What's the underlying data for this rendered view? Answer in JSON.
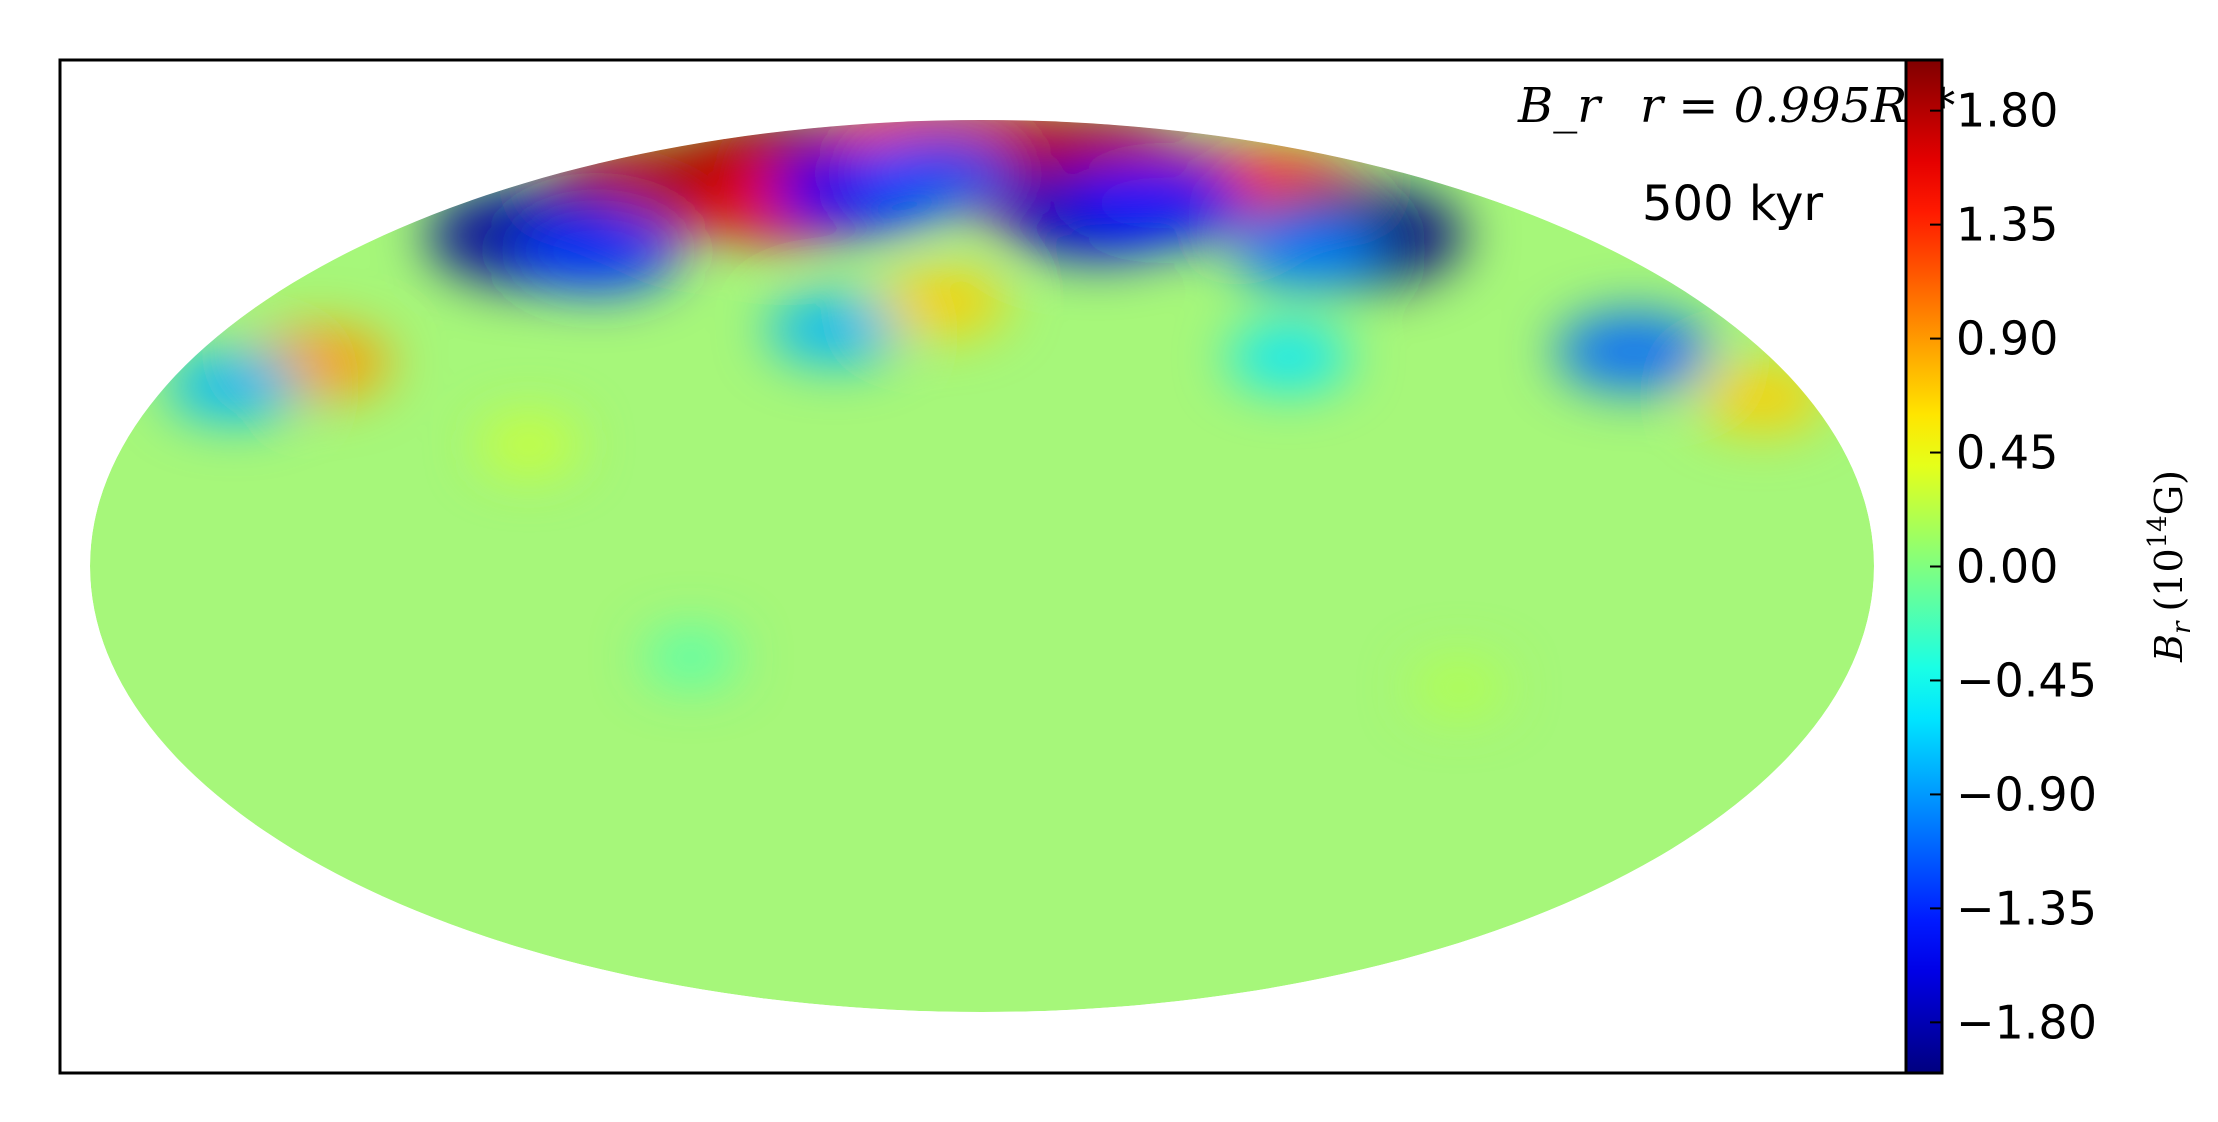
{
  "chart_data": {
    "type": "heatmap",
    "projection": "Mollweide (all-sky map)",
    "variable_label": "B_r",
    "radius_label": "r = 0.995R_*",
    "time_label": "500 kyr",
    "colorbar": {
      "label_main": "B",
      "label_sub": "r",
      "label_unit_open": "(10",
      "label_unit_exp": "14",
      "label_unit_close": "G)",
      "colormap": "jet",
      "range": [
        -2.0,
        2.0
      ],
      "ticks": [
        1.8,
        1.35,
        0.9,
        0.45,
        0.0,
        -0.45,
        -0.9,
        -1.35,
        -1.8
      ],
      "tick_labels": [
        "1.80",
        "1.35",
        "0.90",
        "0.45",
        "0.00",
        "−0.45",
        "−0.90",
        "−1.35",
        "−1.80"
      ]
    },
    "features": [
      {
        "lon": -125,
        "lat": 68,
        "value": 1.8
      },
      {
        "lon": -95,
        "lat": 74,
        "value": 1.9
      },
      {
        "lon": -70,
        "lat": 66,
        "value": 1.6
      },
      {
        "lon": -40,
        "lat": 80,
        "value": 1.5
      },
      {
        "lon": 5,
        "lat": 78,
        "value": 1.6
      },
      {
        "lon": 25,
        "lat": 70,
        "value": 1.7
      },
      {
        "lon": 50,
        "lat": 75,
        "value": 1.8
      },
      {
        "lon": 80,
        "lat": 68,
        "value": 1.6
      },
      {
        "lon": 110,
        "lat": 68,
        "value": 1.3
      },
      {
        "lon": -135,
        "lat": 58,
        "value": -1.9
      },
      {
        "lon": -110,
        "lat": 55,
        "value": -1.3
      },
      {
        "lon": -45,
        "lat": 68,
        "value": -1.5
      },
      {
        "lon": -20,
        "lat": 72,
        "value": -1.2
      },
      {
        "lon": 38,
        "lat": 63,
        "value": -1.7
      },
      {
        "lon": 62,
        "lat": 65,
        "value": -1.4
      },
      {
        "lon": 112,
        "lat": 58,
        "value": -2.0
      },
      {
        "lon": 92,
        "lat": 55,
        "value": -1.0
      },
      {
        "lon": 150,
        "lat": 36,
        "value": -1.1
      },
      {
        "lon": -150,
        "lat": 34,
        "value": 0.9
      },
      {
        "lon": -165,
        "lat": 30,
        "value": -0.8
      },
      {
        "lon": 170,
        "lat": 28,
        "value": 0.7
      },
      {
        "lon": -35,
        "lat": 40,
        "value": -0.8
      },
      {
        "lon": 70,
        "lat": 35,
        "value": -0.6
      },
      {
        "lon": -10,
        "lat": 45,
        "value": 0.7
      },
      {
        "lon": -95,
        "lat": 20,
        "value": 0.3
      },
      {
        "lon": -60,
        "lat": -15,
        "value": -0.2
      },
      {
        "lon": 100,
        "lat": -20,
        "value": 0.2
      }
    ]
  }
}
